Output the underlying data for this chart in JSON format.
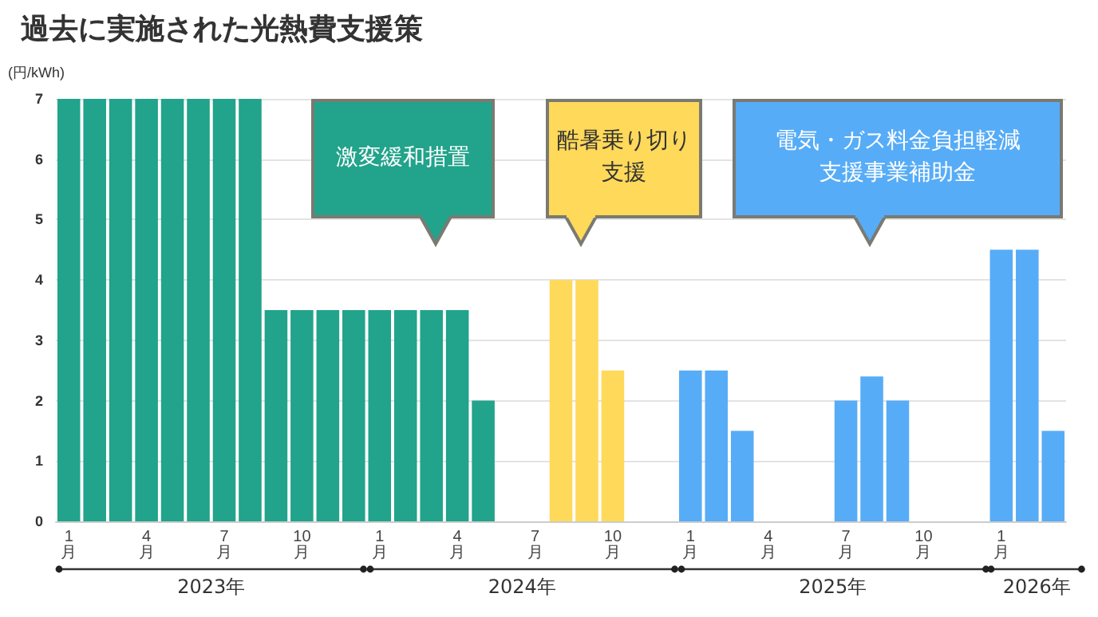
{
  "chart_data": {
    "type": "bar",
    "title": "過去に実施された光熱費支援策",
    "ylabel": "(円/kWh)",
    "categories": [
      "1月",
      null,
      null,
      "4月",
      null,
      null,
      "7月",
      null,
      null,
      "10月",
      null,
      null,
      "1月",
      null,
      null,
      "4月",
      null,
      null,
      "7月",
      null,
      null,
      "10月",
      null,
      null,
      "1月",
      null,
      null,
      "4月",
      null,
      null,
      "7月",
      null,
      null,
      "10月",
      null,
      null,
      "1月",
      null,
      null
    ],
    "series": [
      {
        "color": "#22a38b",
        "values": [
          7,
          7,
          7,
          7,
          7,
          7,
          7,
          7,
          3.5,
          3.5,
          3.5,
          3.5,
          3.5,
          3.5,
          3.5,
          3.5,
          2,
          null,
          null,
          null,
          null,
          null,
          null,
          null,
          null,
          null,
          null,
          null,
          null,
          null,
          null,
          null,
          null,
          null,
          null,
          null,
          null,
          null,
          null
        ]
      },
      {
        "color": "#ffd95a",
        "values": [
          null,
          null,
          null,
          null,
          null,
          null,
          null,
          null,
          null,
          null,
          null,
          null,
          null,
          null,
          null,
          null,
          null,
          null,
          null,
          4,
          4,
          2.5,
          null,
          null,
          null,
          null,
          null,
          null,
          null,
          null,
          null,
          null,
          null,
          null,
          null,
          null,
          null,
          null,
          null
        ]
      },
      {
        "color": "#57acf7",
        "values": [
          null,
          null,
          null,
          null,
          null,
          null,
          null,
          null,
          null,
          null,
          null,
          null,
          null,
          null,
          null,
          null,
          null,
          null,
          null,
          null,
          null,
          null,
          null,
          null,
          2.5,
          2.5,
          1.5,
          null,
          null,
          null,
          2,
          2.4,
          2,
          null,
          null,
          null,
          4.5,
          4.5,
          1.5
        ]
      }
    ],
    "annotations": [
      "激変緩和措置",
      "酷暑乗り切り支援",
      "電気・ガス料金負担軽減支援事業補助金",
      "2023年",
      "2024年",
      "2025年",
      "2026年"
    ],
    "ylim": [
      0,
      7
    ],
    "yticks": [
      0,
      1,
      2,
      3,
      4,
      5,
      6,
      7
    ],
    "grid": "y"
  }
}
